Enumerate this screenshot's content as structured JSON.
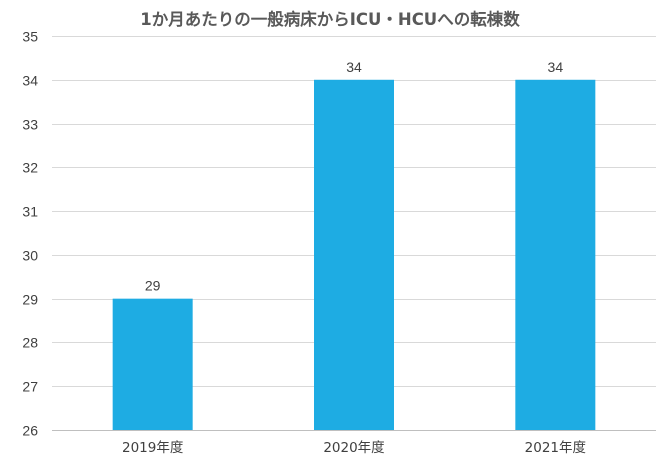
{
  "chart_data": {
    "type": "bar",
    "title": "1か月あたりの一般病床からICU・HCUへの転棟数",
    "xlabel": "",
    "ylabel": "",
    "categories": [
      "2019年度",
      "2020年度",
      "2021年度"
    ],
    "values": [
      29,
      34,
      34
    ],
    "data_labels": [
      "29",
      "34",
      "34"
    ],
    "ylim": [
      26,
      35
    ],
    "y_ticks": [
      26,
      27,
      28,
      29,
      30,
      31,
      32,
      33,
      34,
      35
    ],
    "y_tick_labels": [
      "26",
      "27",
      "28",
      "29",
      "30",
      "31",
      "32",
      "33",
      "34",
      "35"
    ],
    "grid": true,
    "legend": "none",
    "bar_color": "#1eace3"
  }
}
